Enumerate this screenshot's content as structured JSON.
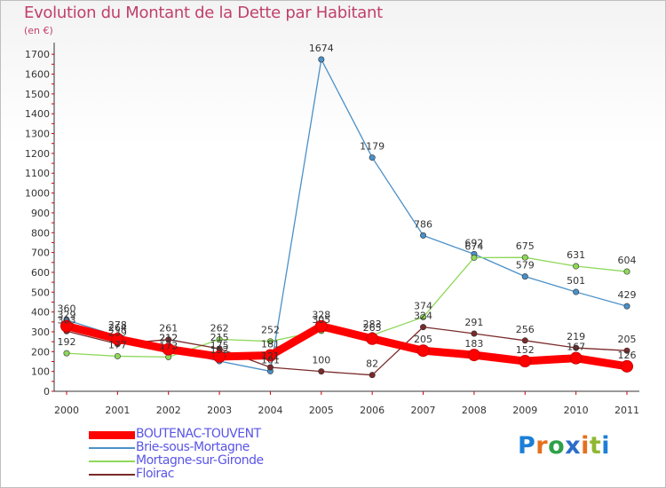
{
  "title": "Evolution du Montant de la Dette par Habitant",
  "subtitle": "(en €)",
  "logo": {
    "text": "Proxiti",
    "letter_colors": [
      "#1d7fd8",
      "#e5701f",
      "#2fa14a",
      "#2b6ec8",
      "#e5701f",
      "#8fb832",
      "#1d7fd8"
    ]
  },
  "chart_data": {
    "type": "line",
    "title": "Evolution du Montant de la Dette par Habitant",
    "ylabel": "(en €)",
    "xlabel": "",
    "x": [
      "2000",
      "2001",
      "2002",
      "2003",
      "2004",
      "2005",
      "2006",
      "2007",
      "2008",
      "2009",
      "2010",
      "2011"
    ],
    "y_ticks": [
      0,
      100,
      200,
      300,
      400,
      500,
      600,
      700,
      800,
      900,
      1000,
      1100,
      1200,
      1300,
      1400,
      1500,
      1600,
      1700
    ],
    "ylim": [
      0,
      1750
    ],
    "grid": false,
    "legend_position": "bottom-left",
    "series": [
      {
        "name": "BOUTENAC-TOUVENT",
        "color": "#ff0000",
        "values": [
          329,
          264,
          212,
          175,
          181,
          328,
          265,
          205,
          183,
          152,
          167,
          126
        ],
        "labels": [
          "329",
          "264",
          "212",
          "175",
          "181",
          "328",
          "265",
          "205",
          "183",
          "152",
          "167",
          "126"
        ]
      },
      {
        "name": "Brie-sous-Mortagne",
        "color": "#4a90c8",
        "values": [
          360,
          278,
          212,
          152,
          101,
          1674,
          1179,
          786,
          692,
          579,
          501,
          429
        ],
        "labels": [
          "360",
          "278",
          "212",
          "152",
          "101",
          "1674",
          "1179",
          "786",
          "692",
          "579",
          "501",
          "429"
        ]
      },
      {
        "name": "Mortagne-sur-Gironde",
        "color": "#8ed85a",
        "values": [
          192,
          177,
          173,
          262,
          252,
          305,
          283,
          374,
          674,
          675,
          631,
          604
        ],
        "labels": [
          "192",
          "177",
          "173",
          "262",
          "252",
          "305",
          "283",
          "374",
          "674",
          "675",
          "631",
          "604"
        ]
      },
      {
        "name": "Floirac",
        "color": "#7a2a2a",
        "values": [
          303,
          239,
          261,
          215,
          121,
          100,
          82,
          324,
          291,
          256,
          219,
          205
        ],
        "labels": [
          "303",
          "239",
          "261",
          "215",
          "121",
          "100",
          "82",
          "324",
          "291",
          "256",
          "219",
          "205"
        ]
      }
    ]
  }
}
